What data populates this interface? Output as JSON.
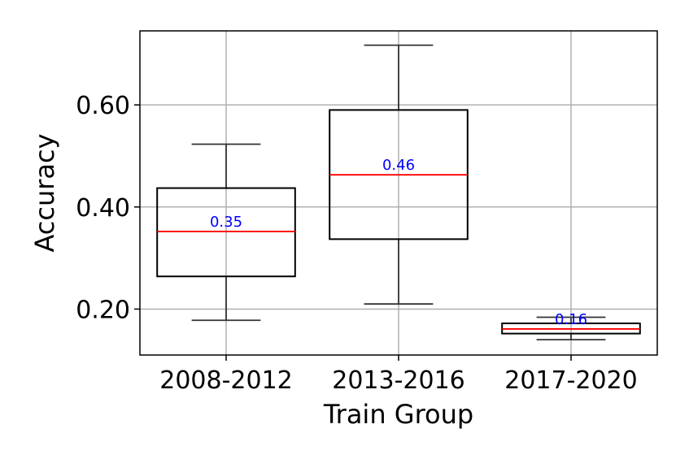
{
  "chart_data": {
    "type": "box",
    "xlabel": "Train Group",
    "ylabel": "Accuracy",
    "ylim": [
      0.11,
      0.745
    ],
    "yticks": [
      0.2,
      0.4,
      0.6
    ],
    "ytick_labels": [
      "0.20",
      "0.40",
      "0.60"
    ],
    "grid": true,
    "median_color": "#ff0000",
    "median_label_color": "#0000ff",
    "groups": [
      {
        "label": "2008-2012",
        "whisker_low": 0.178,
        "q1": 0.264,
        "median": 0.352,
        "q3": 0.437,
        "whisker_high": 0.523,
        "median_label": "0.35"
      },
      {
        "label": "2013-2016",
        "whisker_low": 0.21,
        "q1": 0.337,
        "median": 0.463,
        "q3": 0.59,
        "whisker_high": 0.717,
        "median_label": "0.46"
      },
      {
        "label": "2017-2020",
        "whisker_low": 0.14,
        "q1": 0.152,
        "median": 0.161,
        "q3": 0.172,
        "whisker_high": 0.184,
        "median_label": "0.16"
      }
    ]
  }
}
